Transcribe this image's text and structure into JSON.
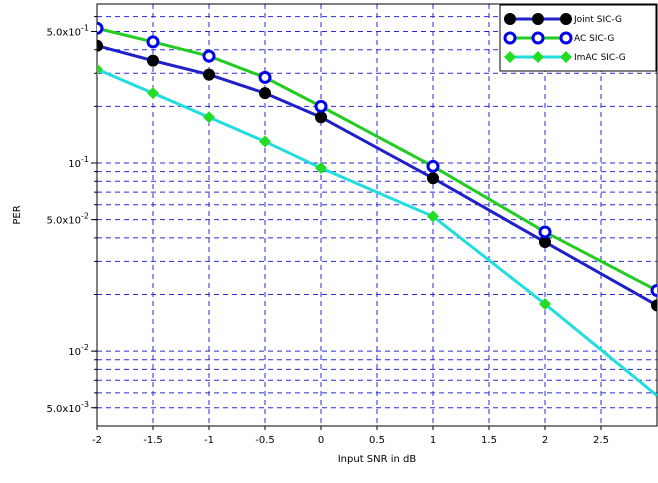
{
  "chart_data": {
    "type": "line",
    "title": "",
    "xlabel": "Input SNR in dB",
    "ylabel": "PER",
    "x_scale": "linear",
    "y_scale": "log",
    "xlim": [
      -2,
      3
    ],
    "ylim": [
      0.004,
      0.7
    ],
    "grid": true,
    "legend_position": "top-right",
    "x_ticks": [
      -2,
      -1.5,
      -1,
      -0.5,
      0,
      0.5,
      1,
      1.5,
      2,
      2.5
    ],
    "x_tick_labels": [
      "-2",
      "-1.5",
      "-1",
      "-0.5",
      "0",
      "0.5",
      "1",
      "1.5",
      "2",
      "2.5"
    ],
    "y_ticks_labeled": [
      {
        "value": 0.5,
        "base": "5.0x10",
        "exp": "-1"
      },
      {
        "value": 0.1,
        "base": "10",
        "exp": "-1"
      },
      {
        "value": 0.05,
        "base": "5.0x10",
        "exp": "-2"
      },
      {
        "value": 0.01,
        "base": "10",
        "exp": "-2"
      },
      {
        "value": 0.005,
        "base": "5.0x10",
        "exp": "-3"
      }
    ],
    "y_grid": [
      0.005,
      0.006,
      0.007,
      0.008,
      0.009,
      0.01,
      0.02,
      0.03,
      0.04,
      0.05,
      0.06,
      0.07,
      0.08,
      0.09,
      0.1,
      0.2,
      0.3,
      0.4,
      0.5,
      0.6
    ],
    "series": [
      {
        "name": "Joint SIC-G",
        "color": "#2020c8",
        "marker": "circle-filled",
        "marker_color": "#000000",
        "x": [
          -2,
          -1.5,
          -1,
          -0.5,
          0,
          1,
          2,
          3
        ],
        "y": [
          0.42,
          0.35,
          0.295,
          0.235,
          0.175,
          0.083,
          0.038,
          0.0175
        ],
        "marker_x": [
          -2,
          -1.5,
          -1,
          -0.5,
          0,
          1,
          2,
          3
        ]
      },
      {
        "name": "AC SIC-G",
        "color": "#22cc22",
        "marker": "circle-open",
        "marker_color": "#0000ee",
        "x": [
          -2,
          -1.5,
          -1,
          -0.5,
          0,
          1,
          2,
          3
        ],
        "y": [
          0.52,
          0.44,
          0.37,
          0.285,
          0.2,
          0.096,
          0.043,
          0.021
        ],
        "marker_x": [
          -2,
          -1.5,
          -1,
          -0.5,
          0,
          1,
          2,
          3
        ]
      },
      {
        "name": "ImAC SIC-G",
        "color": "#22dddd",
        "marker": "diamond-filled",
        "marker_color": "#22dd22",
        "x": [
          -2,
          -1.5,
          -1,
          -0.5,
          0,
          1,
          2,
          3
        ],
        "y": [
          0.315,
          0.235,
          0.175,
          0.13,
          0.094,
          0.052,
          0.0178,
          0.0058
        ],
        "marker_x": [
          -2,
          -1.5,
          -1,
          -0.5,
          0,
          1,
          2
        ]
      }
    ]
  }
}
